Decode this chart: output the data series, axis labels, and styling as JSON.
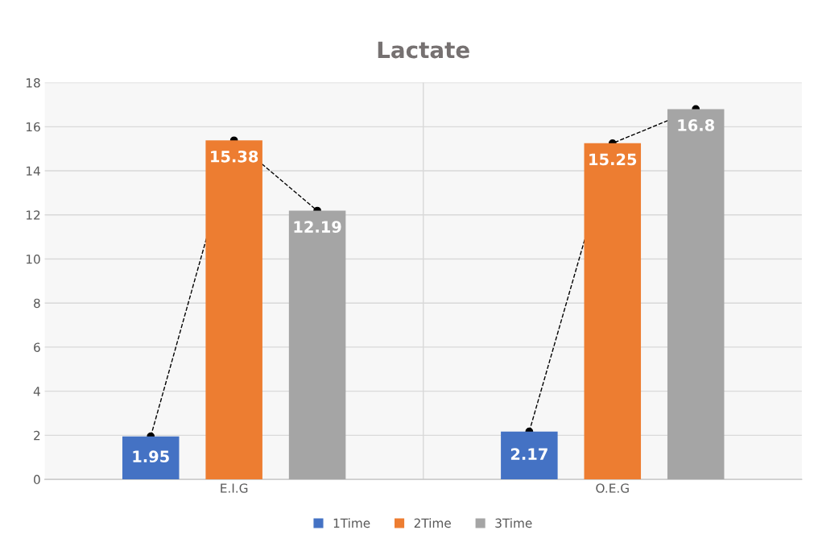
{
  "chart_data": {
    "type": "bar",
    "title": "Lactate",
    "categories": [
      "E.I.G",
      "O.E.G"
    ],
    "series": [
      {
        "name": "1Time",
        "color": "#4472c4",
        "values": [
          1.95,
          2.17
        ]
      },
      {
        "name": "2Time",
        "color": "#ed7d31",
        "values": [
          15.38,
          15.25
        ]
      },
      {
        "name": "3Time",
        "color": "#a5a5a5",
        "values": [
          12.19,
          16.8
        ]
      }
    ],
    "ylim": [
      0,
      18
    ],
    "yticks": [
      0,
      2,
      4,
      6,
      8,
      10,
      12,
      14,
      16,
      18
    ],
    "grid": true,
    "legend": "bottom",
    "data_labels": true,
    "marker": "circle",
    "line_style": "dashed"
  }
}
